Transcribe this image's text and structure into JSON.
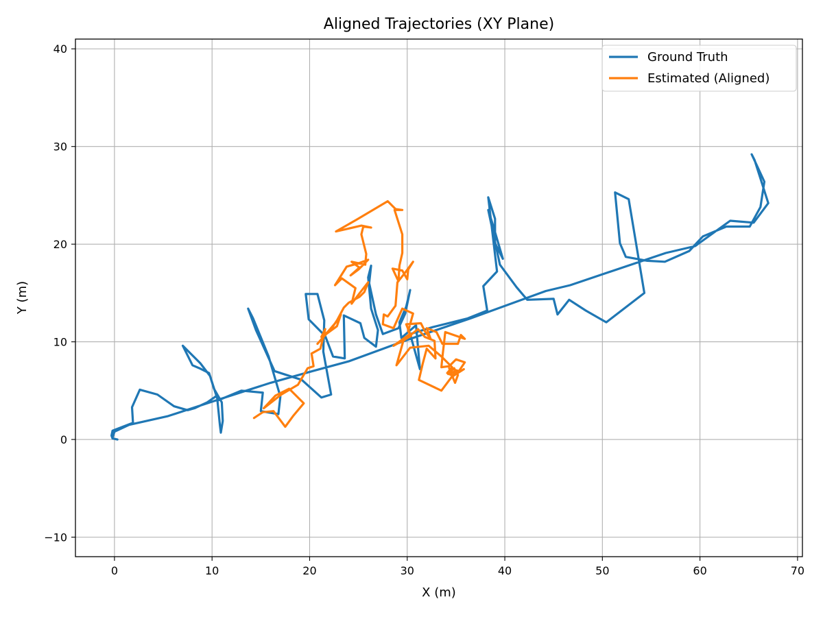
{
  "chart_data": {
    "type": "line",
    "title": "Aligned Trajectories (XY Plane)",
    "xlabel": "X (m)",
    "ylabel": "Y (m)",
    "xlim": [
      -4,
      70.5
    ],
    "ylim": [
      -12,
      41
    ],
    "xticks": [
      0,
      10,
      20,
      30,
      40,
      50,
      60,
      70
    ],
    "yticks": [
      -10,
      0,
      10,
      20,
      30,
      40
    ],
    "grid": true,
    "legend_position": "top-right",
    "series": [
      {
        "name": "Ground Truth",
        "color": "#1f77b4",
        "points": [
          [
            0.3,
            0.0
          ],
          [
            -0.2,
            0.1
          ],
          [
            -0.3,
            0.4
          ],
          [
            -0.2,
            0.9
          ],
          [
            1.9,
            1.7
          ],
          [
            1.8,
            3.3
          ],
          [
            2.6,
            5.1
          ],
          [
            4.4,
            4.6
          ],
          [
            6.1,
            3.4
          ],
          [
            7.5,
            3.0
          ],
          [
            8.2,
            3.2
          ],
          [
            9.5,
            3.8
          ],
          [
            10.5,
            4.5
          ],
          [
            10.8,
            1.5
          ],
          [
            10.9,
            0.7
          ],
          [
            11.1,
            1.9
          ],
          [
            11.0,
            3.8
          ],
          [
            10.2,
            5.2
          ],
          [
            9.7,
            6.8
          ],
          [
            8.7,
            7.3
          ],
          [
            8.0,
            7.6
          ],
          [
            7.0,
            9.6
          ],
          [
            8.8,
            7.8
          ],
          [
            9.8,
            6.5
          ],
          [
            10.6,
            4.0
          ],
          [
            13.0,
            5.0
          ],
          [
            15.2,
            4.8
          ],
          [
            15.0,
            2.9
          ],
          [
            16.8,
            2.6
          ],
          [
            17.0,
            4.4
          ],
          [
            15.8,
            8.5
          ],
          [
            14.2,
            12.4
          ],
          [
            13.7,
            13.4
          ],
          [
            14.5,
            11.2
          ],
          [
            16.4,
            7.0
          ],
          [
            19.2,
            6.1
          ],
          [
            21.2,
            4.3
          ],
          [
            22.2,
            4.6
          ],
          [
            21.4,
            9.0
          ],
          [
            21.5,
            12.2
          ],
          [
            20.8,
            14.9
          ],
          [
            19.6,
            14.9
          ],
          [
            19.9,
            12.3
          ],
          [
            21.6,
            10.6
          ],
          [
            22.4,
            8.5
          ],
          [
            23.6,
            8.3
          ],
          [
            23.5,
            12.7
          ],
          [
            25.2,
            11.9
          ],
          [
            25.6,
            10.4
          ],
          [
            26.8,
            9.5
          ],
          [
            27.0,
            11.2
          ],
          [
            26.3,
            13.4
          ],
          [
            26.0,
            16.6
          ],
          [
            26.3,
            17.8
          ],
          [
            26.1,
            16.0
          ],
          [
            26.8,
            12.8
          ],
          [
            27.5,
            10.8
          ],
          [
            29.1,
            11.4
          ],
          [
            29.8,
            12.9
          ],
          [
            30.3,
            15.3
          ],
          [
            29.9,
            13.6
          ],
          [
            29.2,
            12.0
          ],
          [
            29.4,
            10.4
          ],
          [
            30.9,
            11.7
          ],
          [
            31.3,
            7.2
          ],
          [
            30.3,
            10.8
          ],
          [
            32.6,
            11.5
          ],
          [
            36.2,
            12.4
          ],
          [
            38.2,
            13.2
          ],
          [
            37.8,
            15.7
          ],
          [
            39.2,
            17.2
          ],
          [
            38.3,
            24.8
          ],
          [
            39.0,
            22.6
          ],
          [
            39.0,
            20.1
          ],
          [
            39.8,
            18.5
          ],
          [
            38.8,
            21.9
          ],
          [
            38.3,
            23.5
          ],
          [
            39.5,
            17.9
          ],
          [
            41.2,
            15.6
          ],
          [
            42.3,
            14.3
          ],
          [
            45.0,
            14.4
          ],
          [
            45.4,
            12.8
          ],
          [
            46.6,
            14.3
          ],
          [
            48.3,
            13.2
          ],
          [
            50.4,
            12.0
          ],
          [
            54.3,
            15.0
          ],
          [
            52.7,
            24.6
          ],
          [
            51.3,
            25.3
          ],
          [
            51.8,
            20.1
          ],
          [
            52.4,
            18.7
          ],
          [
            54.6,
            18.3
          ],
          [
            56.4,
            18.2
          ],
          [
            58.9,
            19.3
          ],
          [
            60.3,
            20.8
          ],
          [
            62.7,
            21.8
          ],
          [
            65.1,
            21.8
          ],
          [
            66.2,
            23.8
          ],
          [
            66.6,
            26.4
          ],
          [
            65.3,
            29.2
          ],
          [
            65.6,
            28.6
          ],
          [
            67.0,
            24.2
          ],
          [
            65.5,
            22.2
          ],
          [
            63.1,
            22.4
          ],
          [
            59.5,
            19.8
          ],
          [
            56.5,
            19.1
          ],
          [
            46.7,
            15.8
          ],
          [
            44.2,
            15.2
          ],
          [
            36.5,
            12.4
          ],
          [
            30.0,
            10.2
          ],
          [
            24.0,
            8.0
          ],
          [
            20.3,
            7.0
          ],
          [
            16.0,
            5.8
          ],
          [
            13.5,
            5.0
          ],
          [
            9.8,
            3.8
          ],
          [
            5.5,
            2.4
          ],
          [
            1.5,
            1.5
          ],
          [
            0.0,
            0.8
          ],
          [
            -0.2,
            0.2
          ]
        ]
      },
      {
        "name": "Estimated (Aligned)",
        "color": "#ff7f0e",
        "points": [
          [
            14.3,
            2.2
          ],
          [
            15.2,
            2.8
          ],
          [
            16.3,
            2.9
          ],
          [
            17.5,
            1.3
          ],
          [
            18.3,
            2.4
          ],
          [
            19.4,
            3.7
          ],
          [
            17.9,
            5.2
          ],
          [
            16.5,
            4.5
          ],
          [
            15.3,
            3.2
          ],
          [
            17.1,
            4.6
          ],
          [
            18.8,
            5.6
          ],
          [
            19.8,
            7.3
          ],
          [
            20.4,
            7.5
          ],
          [
            20.2,
            8.8
          ],
          [
            21.1,
            9.3
          ],
          [
            21.6,
            11.3
          ],
          [
            21.2,
            10.5
          ],
          [
            22.2,
            11.3
          ],
          [
            23.2,
            12.8
          ],
          [
            22.8,
            11.6
          ],
          [
            21.7,
            10.8
          ],
          [
            20.8,
            9.8
          ],
          [
            22.7,
            12.0
          ],
          [
            23.5,
            13.5
          ],
          [
            24.0,
            14.0
          ],
          [
            25.1,
            14.6
          ],
          [
            25.6,
            15.1
          ],
          [
            26.0,
            16.1
          ],
          [
            24.9,
            14.7
          ],
          [
            24.3,
            13.9
          ],
          [
            24.7,
            15.5
          ],
          [
            23.3,
            16.5
          ],
          [
            22.6,
            15.8
          ],
          [
            23.8,
            17.7
          ],
          [
            24.9,
            18.0
          ],
          [
            26.0,
            18.4
          ],
          [
            25.0,
            17.4
          ],
          [
            24.2,
            16.8
          ],
          [
            25.1,
            17.6
          ],
          [
            24.3,
            18.2
          ],
          [
            25.7,
            17.9
          ],
          [
            25.8,
            19.0
          ],
          [
            25.3,
            21.0
          ],
          [
            25.5,
            21.8
          ],
          [
            26.3,
            21.7
          ],
          [
            25.3,
            21.9
          ],
          [
            22.7,
            21.3
          ],
          [
            24.8,
            22.5
          ],
          [
            28.0,
            24.4
          ],
          [
            28.8,
            23.6
          ],
          [
            29.5,
            23.5
          ],
          [
            28.7,
            23.5
          ],
          [
            29.5,
            21.0
          ],
          [
            29.5,
            19.1
          ],
          [
            29.2,
            17.8
          ],
          [
            29.1,
            16.2
          ],
          [
            28.5,
            17.5
          ],
          [
            29.5,
            17.3
          ],
          [
            30.0,
            16.4
          ],
          [
            30.1,
            17.4
          ],
          [
            30.6,
            18.2
          ],
          [
            29.8,
            17.1
          ],
          [
            29.0,
            16.1
          ],
          [
            28.8,
            13.7
          ],
          [
            28.0,
            12.6
          ],
          [
            27.6,
            12.8
          ],
          [
            27.5,
            11.8
          ],
          [
            28.6,
            11.4
          ],
          [
            29.5,
            13.4
          ],
          [
            30.6,
            12.9
          ],
          [
            30.1,
            11.1
          ],
          [
            30.4,
            10.6
          ],
          [
            28.6,
            9.6
          ],
          [
            30.3,
            10.8
          ],
          [
            29.9,
            11.8
          ],
          [
            31.4,
            11.9
          ],
          [
            31.8,
            11.1
          ],
          [
            32.4,
            10.3
          ],
          [
            32.0,
            11.4
          ],
          [
            33.0,
            11.0
          ],
          [
            33.6,
            9.8
          ],
          [
            35.2,
            9.8
          ],
          [
            35.5,
            10.7
          ],
          [
            35.9,
            10.3
          ],
          [
            33.9,
            11.0
          ],
          [
            33.6,
            8.4
          ],
          [
            33.5,
            7.4
          ],
          [
            34.3,
            7.5
          ],
          [
            35.0,
            8.2
          ],
          [
            35.9,
            7.9
          ],
          [
            35.3,
            7.0
          ],
          [
            34.3,
            7.3
          ],
          [
            34.9,
            5.8
          ],
          [
            35.2,
            6.6
          ],
          [
            34.8,
            7.3
          ],
          [
            34.2,
            6.7
          ],
          [
            35.0,
            7.0
          ],
          [
            33.5,
            5.0
          ],
          [
            31.2,
            6.1
          ],
          [
            31.6,
            7.8
          ],
          [
            32.0,
            9.3
          ],
          [
            32.9,
            8.3
          ],
          [
            32.8,
            10.1
          ],
          [
            31.8,
            10.5
          ],
          [
            31.1,
            11.3
          ],
          [
            29.6,
            10.1
          ],
          [
            28.9,
            7.6
          ],
          [
            30.3,
            9.4
          ],
          [
            32.2,
            9.6
          ],
          [
            33.5,
            8.5
          ],
          [
            34.6,
            7.4
          ],
          [
            34.1,
            6.8
          ],
          [
            34.7,
            6.5
          ],
          [
            35.8,
            7.2
          ],
          [
            35.3,
            6.9
          ],
          [
            34.8,
            6.6
          ]
        ]
      }
    ]
  }
}
